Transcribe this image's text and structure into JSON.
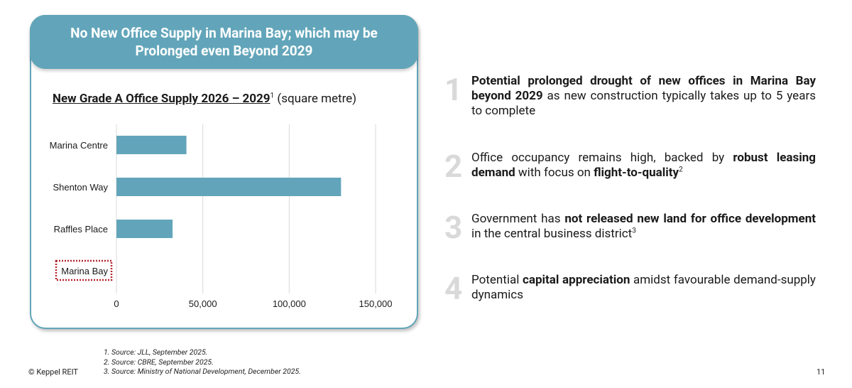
{
  "panel": {
    "title": "No New Office Supply in Marina Bay; which may be Prolonged even Beyond 2029",
    "chart_title_main": "New Grade A Office Supply 2026 – 2029",
    "chart_title_sup": "1",
    "chart_title_unit": " (square metre)"
  },
  "chart_data": {
    "type": "bar",
    "orientation": "horizontal",
    "categories": [
      "Marina Centre",
      "Shenton Way",
      "Raffles Place",
      "Marina Bay"
    ],
    "values": [
      40500,
      130000,
      32500,
      0
    ],
    "highlighted_category": "Marina Bay",
    "xlim": [
      0,
      150000
    ],
    "xticks": [
      0,
      50000,
      100000,
      150000
    ],
    "xtick_labels": [
      "0",
      "50,000",
      "100,000",
      "150,000"
    ],
    "bar_color": "#62a5ba",
    "highlight_border_color": "#b5262e",
    "grid": true
  },
  "points": [
    {
      "num": "1",
      "parts": [
        {
          "b": true,
          "t": "Potential prolonged drought of new offices in Marina Bay beyond 2029"
        },
        {
          "b": false,
          "t": " as new construction typically takes up to 5 years to complete"
        }
      ]
    },
    {
      "num": "2",
      "parts": [
        {
          "b": false,
          "t": "Office occupancy remains high, backed by "
        },
        {
          "b": true,
          "t": "robust leasing demand"
        },
        {
          "b": false,
          "t": " with focus on "
        },
        {
          "b": true,
          "t": "flight-to-quality"
        },
        {
          "sup": true,
          "t": "2"
        }
      ]
    },
    {
      "num": "3",
      "parts": [
        {
          "b": false,
          "t": "Government has "
        },
        {
          "b": true,
          "t": "not released new land for office development"
        },
        {
          "b": false,
          "t": " in the central business district"
        },
        {
          "sup": true,
          "t": "3"
        }
      ]
    },
    {
      "num": "4",
      "parts": [
        {
          "b": false,
          "t": "Potential "
        },
        {
          "b": true,
          "t": "capital appreciation"
        },
        {
          "b": false,
          "t": " amidst favourable demand-supply dynamics"
        }
      ]
    }
  ],
  "footnotes": [
    "1. Source: JLL, September 2025.",
    "2. Source: CBRE, September 2025.",
    "3. Source: Ministry of National Development, December 2025."
  ],
  "footer": {
    "copyright": "© Keppel REIT",
    "page_number": "11"
  }
}
